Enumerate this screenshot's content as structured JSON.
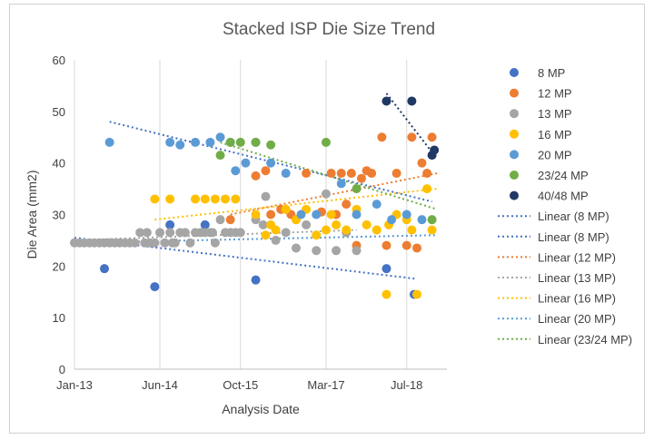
{
  "chart_data": {
    "type": "scatter",
    "title": "Stacked ISP Die Size Trend",
    "xlabel": "Analysis Date",
    "ylabel": "Die Area (mm2)",
    "x_tick_labels": [
      "Jan-13",
      "Jun-14",
      "Oct-15",
      "Mar-17",
      "Jul-18"
    ],
    "x_ticks": [
      "2013-01-01",
      "2014-06-01",
      "2015-10-01",
      "2017-03-01",
      "2018-07-01"
    ],
    "xlim": [
      "2013-01-01",
      "2019-03-01"
    ],
    "ylim": [
      0,
      60
    ],
    "y_ticks": [
      0,
      10,
      20,
      30,
      40,
      50,
      60
    ],
    "grid": "vertical",
    "legend_position": "right",
    "series": [
      {
        "name": "8 MP",
        "color": "#4472c4",
        "x": [
          "2013-07-01",
          "2014-05-01",
          "2014-08-01",
          "2015-03-01",
          "2016-01-01",
          "2018-03-01",
          "2018-08-15"
        ],
        "y": [
          19.5,
          16,
          28,
          28,
          17.3,
          19.5,
          14.5
        ]
      },
      {
        "name": "12 MP",
        "color": "#ed7d31",
        "x": [
          "2015-08-01",
          "2016-01-01",
          "2016-03-01",
          "2016-06-01",
          "2016-08-01",
          "2016-11-01",
          "2017-02-01",
          "2017-04-01",
          "2017-06-01",
          "2017-08-01",
          "2017-10-01",
          "2017-12-01",
          "2018-02-01",
          "2018-03-01",
          "2018-05-01",
          "2018-07-01",
          "2018-08-01",
          "2018-10-01",
          "2018-11-01",
          "2018-12-01",
          "2017-05-01",
          "2017-07-01",
          "2016-09-01",
          "2016-04-01",
          "2017-09-01",
          "2018-09-01",
          "2017-11-01"
        ],
        "y": [
          29,
          37.5,
          38.5,
          31,
          30,
          38,
          30.5,
          38,
          38,
          38,
          37,
          38,
          45,
          24,
          38,
          24,
          45,
          40,
          38,
          45,
          30,
          32,
          29,
          30,
          24,
          23.5,
          38.5
        ]
      },
      {
        "name": "13 MP",
        "color": "#a5a5a5",
        "x": [
          "2013-01-01",
          "2013-02-01",
          "2013-03-01",
          "2013-04-01",
          "2013-05-01",
          "2013-06-01",
          "2013-07-01",
          "2013-08-01",
          "2013-09-01",
          "2013-10-01",
          "2013-11-01",
          "2013-12-01",
          "2014-01-01",
          "2014-02-01",
          "2014-03-01",
          "2014-04-01",
          "2014-05-01",
          "2014-06-01",
          "2014-07-01",
          "2014-08-01",
          "2014-09-01",
          "2014-10-01",
          "2014-11-01",
          "2014-12-01",
          "2015-01-01",
          "2015-02-01",
          "2015-03-01",
          "2015-04-01",
          "2015-05-01",
          "2015-06-01",
          "2015-07-01",
          "2015-08-01",
          "2015-09-01",
          "2015-10-01",
          "2016-01-01",
          "2016-03-01",
          "2016-05-01",
          "2016-07-01",
          "2016-09-01",
          "2016-11-01",
          "2017-01-01",
          "2017-03-01",
          "2017-05-01",
          "2017-07-01",
          "2017-09-01",
          "2014-03-15",
          "2014-08-15",
          "2015-04-15",
          "2016-02-15"
        ],
        "y": [
          24.5,
          24.5,
          24.5,
          24.5,
          24.5,
          24.5,
          24.5,
          24.5,
          24.5,
          24.5,
          24.5,
          24.5,
          24.5,
          26.5,
          24.5,
          24.5,
          24.5,
          26.5,
          24.5,
          26.5,
          24.5,
          26.5,
          26.5,
          24.5,
          26.5,
          26.5,
          26.5,
          26.5,
          24.5,
          29,
          26.5,
          26.5,
          26.5,
          26.5,
          29,
          33.5,
          25,
          26.5,
          23.5,
          28,
          23,
          34,
          23,
          26.5,
          23,
          26.5,
          24.5,
          26.5,
          28
        ]
      },
      {
        "name": "16 MP",
        "color": "#ffc000",
        "x": [
          "2014-05-01",
          "2014-08-01",
          "2015-01-01",
          "2015-03-01",
          "2015-05-01",
          "2015-07-01",
          "2015-09-01",
          "2016-01-01",
          "2016-03-01",
          "2016-05-01",
          "2016-07-01",
          "2016-09-01",
          "2016-11-01",
          "2017-01-01",
          "2017-03-01",
          "2017-05-01",
          "2017-07-01",
          "2017-09-01",
          "2017-11-01",
          "2018-01-01",
          "2018-03-01",
          "2018-05-01",
          "2018-07-01",
          "2018-09-01",
          "2018-11-01",
          "2018-12-01",
          "2018-03-15",
          "2018-08-01",
          "2016-04-01",
          "2017-04-01"
        ],
        "y": [
          33,
          33,
          33,
          33,
          33,
          33,
          33,
          30,
          26,
          27,
          31,
          29,
          31,
          26,
          27,
          28,
          27,
          31,
          28,
          27,
          14.5,
          30,
          29,
          14.5,
          35,
          27,
          28,
          27,
          28,
          30
        ]
      },
      {
        "name": "20 MP",
        "color": "#5b9bd5",
        "x": [
          "2013-08-01",
          "2014-08-01",
          "2014-10-01",
          "2015-01-01",
          "2015-04-01",
          "2015-06-01",
          "2015-08-01",
          "2015-09-01",
          "2015-11-01",
          "2016-01-01",
          "2016-04-01",
          "2016-07-01",
          "2017-01-01",
          "2017-06-01",
          "2017-09-01",
          "2018-01-01",
          "2018-04-01",
          "2018-07-01",
          "2018-10-01",
          "2016-10-01"
        ],
        "y": [
          44,
          44,
          43.5,
          44,
          44,
          45,
          44,
          38.5,
          40,
          44,
          40,
          38,
          30,
          36,
          30,
          32,
          29,
          30,
          29,
          30
        ]
      },
      {
        "name": "23/24 MP",
        "color": "#70ad47",
        "x": [
          "2015-06-01",
          "2015-08-01",
          "2015-10-01",
          "2016-01-01",
          "2016-04-01",
          "2017-03-01",
          "2017-09-01",
          "2018-12-01"
        ],
        "y": [
          41.5,
          44,
          44,
          44,
          43.5,
          44,
          35,
          29
        ]
      },
      {
        "name": "40/48 MP",
        "color": "#203864",
        "x": [
          "2018-03-01",
          "2018-08-01",
          "2018-12-01",
          "2018-12-15"
        ],
        "y": [
          52,
          52,
          41.5,
          42.5
        ]
      }
    ],
    "trendlines": [
      {
        "name": "Linear (8 MP)",
        "color": "#4472c4",
        "x": [
          "2013-01-01",
          "2018-09-01"
        ],
        "y": [
          25.5,
          17.5
        ]
      },
      {
        "name": "Linear (8 MP)",
        "color": "#4472c4",
        "x": [
          "2013-08-01",
          "2018-12-01"
        ],
        "y": [
          48,
          32.5
        ]
      },
      {
        "name": "Linear (12 MP)",
        "color": "#ed7d31",
        "x": [
          "2015-08-01",
          "2019-01-01"
        ],
        "y": [
          30,
          38
        ]
      },
      {
        "name": "Linear (13 MP)",
        "color": "#a5a5a5",
        "x": [
          "2013-01-01",
          "2017-09-01"
        ],
        "y": [
          25,
          27
        ]
      },
      {
        "name": "Linear (16 MP)",
        "color": "#ffc000",
        "x": [
          "2014-05-01",
          "2019-01-01"
        ],
        "y": [
          29,
          35
        ]
      },
      {
        "name": "Linear (20 MP)",
        "color": "#5b9bd5",
        "x": [
          "2013-01-01",
          "2019-01-01"
        ],
        "y": [
          24.5,
          26
        ]
      },
      {
        "name": "Linear (23/24 MP)",
        "color": "#70ad47",
        "x": [
          "2015-06-01",
          "2019-01-01"
        ],
        "y": [
          44,
          31
        ]
      },
      {
        "name": "",
        "color": "#203864",
        "x": [
          "2018-03-01",
          "2018-12-15"
        ],
        "y": [
          53.5,
          41.5
        ]
      }
    ]
  }
}
